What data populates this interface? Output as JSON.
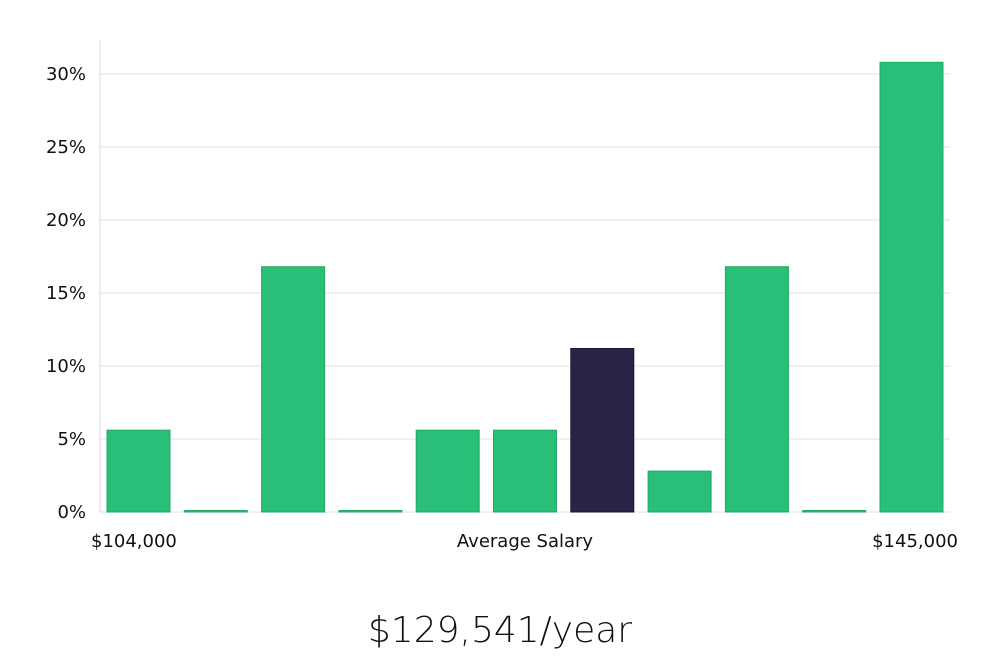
{
  "chart_data": {
    "type": "bar",
    "categories": [
      "1",
      "2",
      "3",
      "4",
      "5",
      "6",
      "7",
      "8",
      "9",
      "10",
      "11"
    ],
    "values": [
      5.6,
      0,
      16.8,
      0,
      5.6,
      5.6,
      11.2,
      2.8,
      16.8,
      0,
      30.8
    ],
    "highlight_index": 6,
    "ylim": [
      0,
      32
    ],
    "yticks": [
      0,
      5,
      10,
      15,
      20,
      25,
      30
    ],
    "ytick_labels": [
      "0%",
      "5%",
      "10%",
      "15%",
      "20%",
      "25%",
      "30%"
    ],
    "x_left_label": "$104,000",
    "x_center_label": "Average Salary",
    "x_right_label": "$145,000",
    "grid": true,
    "colors": {
      "bar": "#2abf78",
      "highlight": "#272445"
    }
  },
  "footer": {
    "salary": "$129,541/year"
  }
}
